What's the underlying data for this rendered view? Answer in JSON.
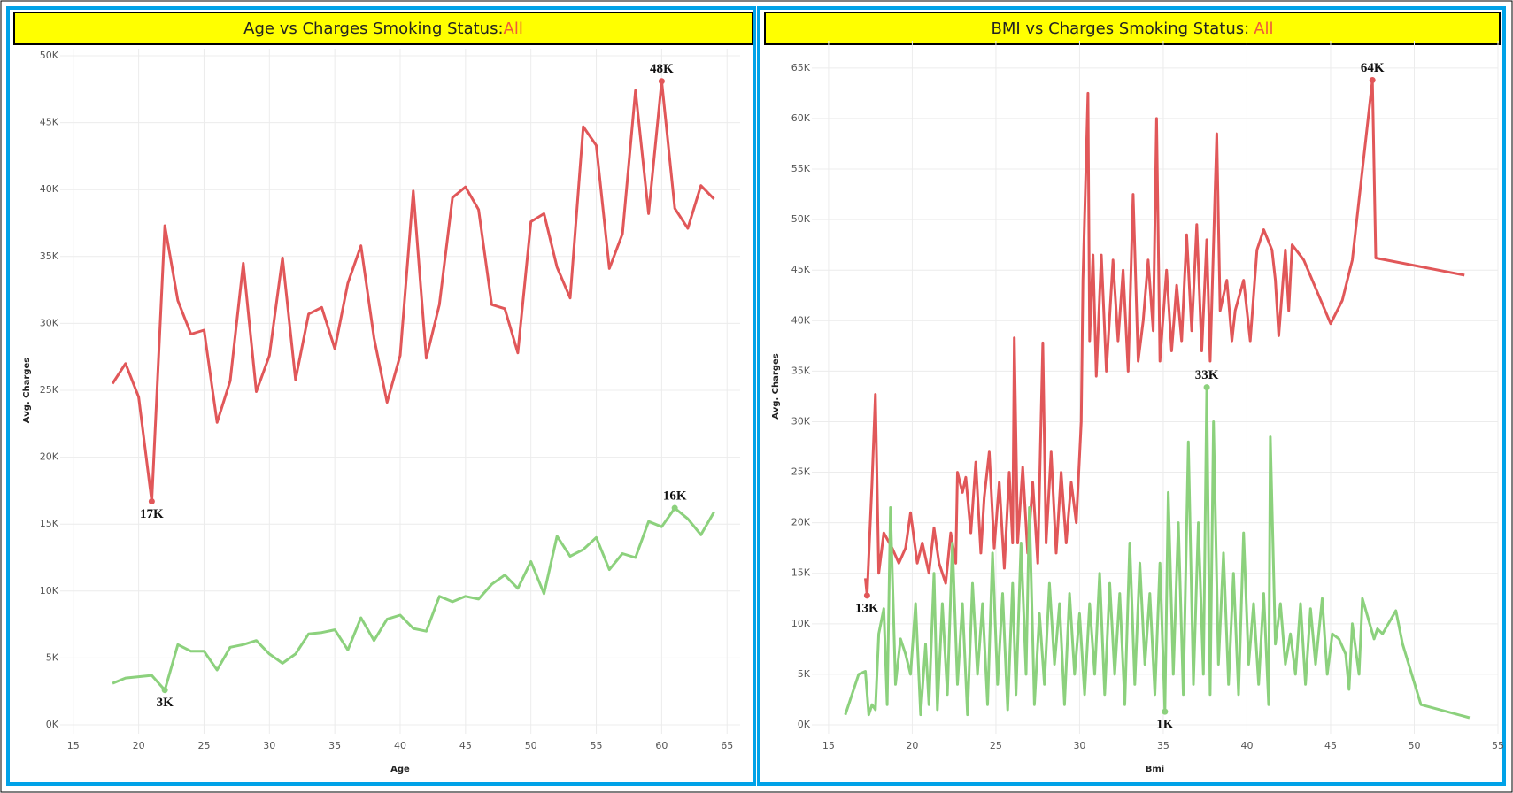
{
  "chart_data": [
    {
      "type": "line",
      "title": "Age vs Charges Smoking Status:",
      "title_highlight": "All",
      "x_label": "Age",
      "y_label": "Avg. Charges",
      "grid": true,
      "xlim": [
        14,
        66
      ],
      "xticks": [
        15,
        20,
        25,
        30,
        35,
        40,
        45,
        50,
        55,
        60,
        65
      ],
      "ylim": [
        0,
        50000
      ],
      "yticks": [
        {
          "value": 0,
          "label": "0K"
        },
        {
          "value": 5000,
          "label": "5K"
        },
        {
          "value": 10000,
          "label": "10K"
        },
        {
          "value": 15000,
          "label": "15K"
        },
        {
          "value": 20000,
          "label": "20K"
        },
        {
          "value": 25000,
          "label": "25K"
        },
        {
          "value": 30000,
          "label": "30K"
        },
        {
          "value": 35000,
          "label": "35K"
        },
        {
          "value": 40000,
          "label": "40K"
        },
        {
          "value": 45000,
          "label": "45K"
        },
        {
          "value": 50000,
          "label": "50K"
        }
      ],
      "x": [
        18,
        19,
        20,
        21,
        22,
        23,
        24,
        25,
        26,
        27,
        28,
        29,
        30,
        31,
        32,
        33,
        34,
        35,
        36,
        37,
        38,
        39,
        40,
        41,
        42,
        43,
        44,
        45,
        46,
        47,
        48,
        49,
        50,
        51,
        52,
        53,
        54,
        55,
        56,
        57,
        58,
        59,
        60,
        61,
        62,
        63,
        64
      ],
      "series": [
        {
          "color": "#e15759",
          "values": [
            25500,
            27000,
            24500,
            16700,
            37300,
            31700,
            29200,
            29500,
            22600,
            25700,
            34500,
            24900,
            27600,
            34900,
            25800,
            30700,
            31200,
            28100,
            33000,
            35800,
            28900,
            24100,
            27600,
            39900,
            27400,
            31400,
            39400,
            40200,
            38500,
            31400,
            31100,
            27800,
            37600,
            38200,
            34200,
            31900,
            44700,
            43300,
            34100,
            36700,
            47400,
            38200,
            48100,
            38600,
            37100,
            40300,
            39300
          ],
          "value_labels": [
            null,
            null,
            null,
            "17K",
            null,
            null,
            null,
            null,
            null,
            null,
            null,
            null,
            null,
            null,
            null,
            null,
            null,
            null,
            null,
            null,
            null,
            null,
            null,
            null,
            null,
            null,
            null,
            null,
            null,
            null,
            null,
            null,
            null,
            null,
            null,
            null,
            null,
            null,
            null,
            null,
            null,
            null,
            "48K",
            null,
            null,
            null,
            null
          ]
        },
        {
          "color": "#8cd17d",
          "values": [
            3100,
            3500,
            3600,
            3700,
            2600,
            6000,
            5500,
            5500,
            4100,
            5800,
            6000,
            6300,
            5300,
            4600,
            5300,
            6800,
            6900,
            7100,
            5600,
            8000,
            6300,
            7900,
            8200,
            7200,
            7000,
            9600,
            9200,
            9600,
            9400,
            10500,
            11200,
            10200,
            12200,
            9800,
            14100,
            12600,
            13100,
            14000,
            11600,
            12800,
            12500,
            15200,
            14800,
            16200,
            15400,
            14200,
            15900
          ],
          "value_labels": [
            null,
            null,
            null,
            null,
            "3K",
            null,
            null,
            null,
            null,
            null,
            null,
            null,
            null,
            null,
            null,
            null,
            null,
            null,
            null,
            null,
            null,
            null,
            null,
            null,
            null,
            null,
            null,
            null,
            null,
            null,
            null,
            null,
            null,
            null,
            null,
            null,
            null,
            null,
            null,
            null,
            null,
            null,
            null,
            "16K",
            null,
            null,
            null
          ]
        }
      ]
    },
    {
      "type": "line",
      "title": "BMI vs Charges Smoking Status:",
      "title_highlight": "All",
      "x_label": "Bmi",
      "y_label": "Avg. Charges",
      "grid": true,
      "xlim": [
        14,
        55
      ],
      "xticks": [
        15,
        20,
        25,
        30,
        35,
        40,
        45,
        50,
        55
      ],
      "ylim": [
        0,
        67000
      ],
      "yticks": [
        {
          "value": 0,
          "label": "0K"
        },
        {
          "value": 5000,
          "label": "5K"
        },
        {
          "value": 10000,
          "label": "10K"
        },
        {
          "value": 15000,
          "label": "15K"
        },
        {
          "value": 20000,
          "label": "20K"
        },
        {
          "value": 25000,
          "label": "25K"
        },
        {
          "value": 30000,
          "label": "30K"
        },
        {
          "value": 35000,
          "label": "35K"
        },
        {
          "value": 40000,
          "label": "40K"
        },
        {
          "value": 45000,
          "label": "45K"
        },
        {
          "value": 50000,
          "label": "50K"
        },
        {
          "value": 55000,
          "label": "55K"
        },
        {
          "value": 60000,
          "label": "60K"
        },
        {
          "value": 65000,
          "label": "65K"
        }
      ],
      "series": [
        {
          "color": "#e15759",
          "x": [
            17.2,
            17.3,
            17.6,
            17.8,
            18.0,
            18.3,
            18.8,
            19.2,
            19.6,
            19.9,
            20.3,
            20.6,
            21.0,
            21.3,
            21.6,
            22.0,
            22.3,
            22.6,
            22.7,
            23.0,
            23.2,
            23.5,
            23.8,
            24.1,
            24.3,
            24.6,
            24.9,
            25.2,
            25.5,
            25.8,
            26.0,
            26.1,
            26.3,
            26.6,
            26.9,
            27.2,
            27.5,
            27.8,
            28.0,
            28.3,
            28.6,
            28.9,
            29.2,
            29.5,
            29.8,
            30.1,
            30.2,
            30.5,
            30.6,
            30.8,
            31.0,
            31.3,
            31.6,
            32.0,
            32.3,
            32.6,
            32.9,
            33.2,
            33.5,
            33.8,
            34.1,
            34.4,
            34.6,
            34.8,
            35.2,
            35.5,
            35.8,
            36.1,
            36.4,
            36.7,
            37.0,
            37.3,
            37.6,
            37.8,
            38.2,
            38.4,
            38.8,
            39.1,
            39.3,
            39.8,
            40.2,
            40.6,
            41.0,
            41.5,
            41.7,
            41.9,
            42.3,
            42.5,
            42.7,
            43.4,
            45.0,
            45.7,
            46.3,
            47.5,
            47.7,
            53.0
          ],
          "values": [
            14500,
            12800,
            24000,
            32700,
            15000,
            19000,
            17500,
            16000,
            17500,
            21000,
            16000,
            18000,
            15000,
            19500,
            16000,
            14000,
            19000,
            16000,
            25000,
            23000,
            24500,
            19000,
            26000,
            17000,
            22500,
            27000,
            17500,
            24000,
            15500,
            25000,
            18000,
            38300,
            18000,
            25500,
            17000,
            24000,
            16000,
            37800,
            18000,
            27000,
            17000,
            25000,
            18000,
            24000,
            20000,
            30000,
            44000,
            62500,
            38000,
            46500,
            34500,
            46500,
            35000,
            46000,
            38000,
            45000,
            35000,
            52500,
            36000,
            40000,
            46000,
            39000,
            60000,
            36000,
            45000,
            37000,
            43500,
            38000,
            48500,
            39000,
            49500,
            37000,
            48000,
            36000,
            58500,
            41000,
            44000,
            38000,
            41000,
            44000,
            38000,
            47000,
            49000,
            47000,
            44000,
            38500,
            47000,
            41000,
            47500,
            46000,
            39700,
            42000,
            46000,
            63800,
            46200,
            44500
          ],
          "value_labels": [
            null,
            "13K",
            null,
            null,
            null,
            null,
            null,
            null,
            null,
            null,
            null,
            null,
            null,
            null,
            null,
            null,
            null,
            null,
            null,
            null,
            null,
            null,
            null,
            null,
            null,
            null,
            null,
            null,
            null,
            null,
            null,
            null,
            null,
            null,
            null,
            null,
            null,
            null,
            null,
            null,
            null,
            null,
            null,
            null,
            null,
            null,
            null,
            null,
            null,
            null,
            null,
            null,
            null,
            null,
            null,
            null,
            null,
            null,
            null,
            null,
            null,
            null,
            null,
            null,
            null,
            null,
            null,
            null,
            null,
            null,
            null,
            null,
            null,
            null,
            null,
            null,
            null,
            null,
            null,
            null,
            null,
            null,
            null,
            null,
            null,
            null,
            null,
            null,
            null,
            null,
            null,
            null,
            null,
            "64K",
            null,
            null
          ]
        },
        {
          "color": "#8cd17d",
          "x": [
            16.0,
            16.8,
            17.2,
            17.4,
            17.6,
            17.8,
            18.0,
            18.3,
            18.5,
            18.7,
            19.0,
            19.3,
            19.6,
            19.9,
            20.2,
            20.5,
            20.8,
            21.0,
            21.3,
            21.5,
            21.8,
            22.1,
            22.4,
            22.7,
            23.0,
            23.3,
            23.6,
            23.9,
            24.2,
            24.5,
            24.8,
            25.1,
            25.4,
            25.7,
            26.0,
            26.2,
            26.5,
            26.8,
            27.0,
            27.3,
            27.6,
            27.9,
            28.2,
            28.5,
            28.8,
            29.1,
            29.4,
            29.7,
            30.0,
            30.3,
            30.6,
            30.9,
            31.2,
            31.5,
            31.8,
            32.1,
            32.4,
            32.7,
            33.0,
            33.3,
            33.6,
            33.9,
            34.2,
            34.5,
            34.8,
            35.1,
            35.3,
            35.6,
            35.9,
            36.2,
            36.5,
            36.8,
            37.1,
            37.4,
            37.6,
            37.8,
            38.0,
            38.3,
            38.6,
            38.9,
            39.2,
            39.5,
            39.8,
            40.1,
            40.4,
            40.7,
            41.0,
            41.3,
            41.4,
            41.7,
            42.0,
            42.3,
            42.6,
            42.9,
            43.2,
            43.5,
            43.8,
            44.1,
            44.5,
            44.8,
            45.1,
            45.5,
            45.9,
            46.1,
            46.3,
            46.7,
            46.9,
            47.6,
            47.8,
            48.1,
            48.9,
            49.3,
            50.4,
            53.3
          ],
          "values": [
            1000,
            5000,
            5300,
            1000,
            2000,
            1500,
            9000,
            11500,
            2000,
            21500,
            4000,
            8500,
            7000,
            5000,
            12000,
            1000,
            8000,
            2000,
            15000,
            1500,
            12000,
            3000,
            18000,
            4000,
            12000,
            1000,
            14000,
            5000,
            12000,
            2000,
            17000,
            4000,
            13000,
            1500,
            14000,
            3000,
            18000,
            5000,
            21500,
            2000,
            11000,
            4000,
            14000,
            6000,
            12000,
            2000,
            13000,
            5000,
            11000,
            3000,
            12000,
            5000,
            15000,
            3000,
            14000,
            5000,
            13000,
            2000,
            18000,
            4000,
            16000,
            6000,
            13000,
            3000,
            16000,
            1300,
            23000,
            5000,
            20000,
            3000,
            28000,
            4000,
            20000,
            5000,
            33400,
            3000,
            30000,
            6000,
            17000,
            4000,
            15000,
            3000,
            19000,
            6000,
            12000,
            4000,
            13000,
            2000,
            28500,
            8000,
            12000,
            6000,
            9000,
            5000,
            12000,
            4000,
            11500,
            6000,
            12500,
            5000,
            9000,
            8500,
            7000,
            3500,
            10000,
            5000,
            12500,
            8500,
            9500,
            9000,
            11300,
            8000,
            2000,
            700
          ],
          "value_labels": [
            null,
            null,
            null,
            null,
            null,
            null,
            null,
            null,
            null,
            null,
            null,
            null,
            null,
            null,
            null,
            null,
            null,
            null,
            null,
            null,
            null,
            null,
            null,
            null,
            null,
            null,
            null,
            null,
            null,
            null,
            null,
            null,
            null,
            null,
            null,
            null,
            null,
            null,
            null,
            null,
            null,
            null,
            null,
            null,
            null,
            null,
            null,
            null,
            null,
            null,
            null,
            null,
            null,
            null,
            null,
            null,
            null,
            null,
            null,
            null,
            null,
            null,
            null,
            null,
            null,
            "1K",
            null,
            null,
            null,
            null,
            null,
            null,
            null,
            null,
            "33K",
            null,
            null,
            null,
            null,
            null,
            null,
            null,
            null,
            null,
            null,
            null,
            null,
            null,
            null,
            null,
            null,
            null,
            null,
            null,
            null,
            null,
            null,
            null,
            null,
            null,
            null,
            null,
            null,
            null,
            null,
            null,
            null,
            null,
            null,
            null,
            null,
            null,
            null,
            null
          ]
        }
      ]
    }
  ]
}
